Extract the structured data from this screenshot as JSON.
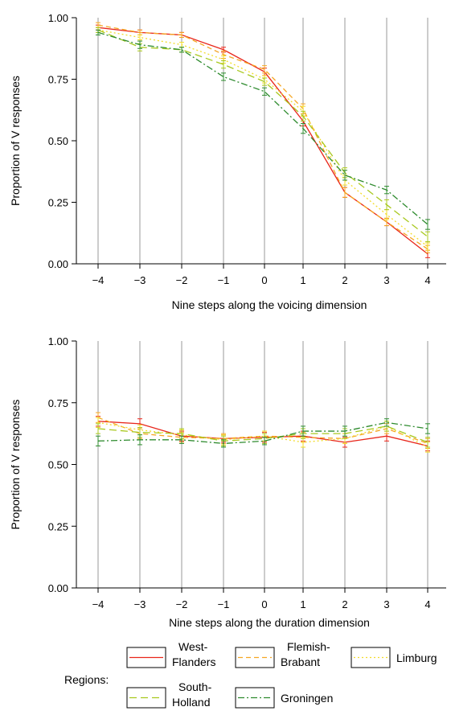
{
  "chart_data": [
    {
      "type": "line",
      "xlabel": "Nine steps along the voicing dimension",
      "ylabel": "Proportion of V responses",
      "x": [
        "−4",
        "−3",
        "−2",
        "−1",
        "0",
        "1",
        "2",
        "3",
        "4"
      ],
      "ylim": [
        0,
        1
      ],
      "yticks": [
        "0.00",
        "0.25",
        "0.50",
        "0.75",
        "1.00"
      ],
      "grid": "vertical",
      "series": [
        {
          "name": "West-Flanders",
          "color": "#e8261b",
          "dash": "solid",
          "values": [
            0.96,
            0.94,
            0.93,
            0.87,
            0.78,
            0.58,
            0.29,
            0.17,
            0.04
          ],
          "error": [
            0.01,
            0.01,
            0.01,
            0.01,
            0.015,
            0.02,
            0.02,
            0.015,
            0.015
          ]
        },
        {
          "name": "Flemish-Brabant",
          "color": "#f5a623",
          "dash": "dash",
          "values": [
            0.97,
            0.94,
            0.93,
            0.85,
            0.79,
            0.63,
            0.29,
            0.17,
            0.06
          ],
          "error": [
            0.01,
            0.01,
            0.01,
            0.015,
            0.015,
            0.02,
            0.02,
            0.015,
            0.015
          ]
        },
        {
          "name": "Limburg",
          "color": "#f2dc2a",
          "dash": "dot",
          "values": [
            0.95,
            0.92,
            0.89,
            0.83,
            0.75,
            0.62,
            0.34,
            0.2,
            0.07
          ],
          "error": [
            0.01,
            0.01,
            0.01,
            0.015,
            0.015,
            0.02,
            0.02,
            0.02,
            0.015
          ]
        },
        {
          "name": "South-Holland",
          "color": "#a8c81e",
          "dash": "longdash",
          "values": [
            0.95,
            0.88,
            0.87,
            0.81,
            0.74,
            0.6,
            0.37,
            0.24,
            0.11
          ],
          "error": [
            0.01,
            0.015,
            0.01,
            0.015,
            0.015,
            0.02,
            0.02,
            0.02,
            0.02
          ]
        },
        {
          "name": "Groningen",
          "color": "#2e8b2e",
          "dash": "dashdot",
          "values": [
            0.94,
            0.89,
            0.87,
            0.76,
            0.7,
            0.55,
            0.36,
            0.3,
            0.16
          ],
          "error": [
            0.01,
            0.015,
            0.01,
            0.015,
            0.015,
            0.02,
            0.02,
            0.015,
            0.02
          ]
        }
      ]
    },
    {
      "type": "line",
      "xlabel": "Nine steps along the duration dimension",
      "ylabel": "Proportion of V responses",
      "x": [
        "−4",
        "−3",
        "−2",
        "−1",
        "0",
        "1",
        "2",
        "3",
        "4"
      ],
      "ylim": [
        0,
        1
      ],
      "yticks": [
        "0.00",
        "0.25",
        "0.50",
        "0.75",
        "1.00"
      ],
      "grid": "vertical",
      "series": [
        {
          "name": "West-Flanders",
          "color": "#e8261b",
          "dash": "solid",
          "values": [
            0.675,
            0.665,
            0.615,
            0.605,
            0.61,
            0.615,
            0.59,
            0.615,
            0.575
          ],
          "error": [
            0.02,
            0.02,
            0.02,
            0.015,
            0.02,
            0.02,
            0.02,
            0.02,
            0.02
          ]
        },
        {
          "name": "Flemish-Brabant",
          "color": "#f5a623",
          "dash": "dash",
          "values": [
            0.69,
            0.625,
            0.61,
            0.605,
            0.615,
            0.61,
            0.605,
            0.645,
            0.585
          ],
          "error": [
            0.02,
            0.02,
            0.02,
            0.02,
            0.02,
            0.02,
            0.02,
            0.02,
            0.02
          ]
        },
        {
          "name": "Limburg",
          "color": "#f2dc2a",
          "dash": "dot",
          "values": [
            0.67,
            0.64,
            0.62,
            0.6,
            0.615,
            0.59,
            0.605,
            0.655,
            0.57
          ],
          "error": [
            0.02,
            0.02,
            0.02,
            0.02,
            0.02,
            0.02,
            0.02,
            0.02,
            0.02
          ]
        },
        {
          "name": "South-Holland",
          "color": "#a8c81e",
          "dash": "longdash",
          "values": [
            0.645,
            0.63,
            0.625,
            0.595,
            0.605,
            0.625,
            0.625,
            0.655,
            0.59
          ],
          "error": [
            0.02,
            0.02,
            0.02,
            0.02,
            0.02,
            0.02,
            0.02,
            0.02,
            0.02
          ]
        },
        {
          "name": "Groningen",
          "color": "#2e8b2e",
          "dash": "dashdot",
          "values": [
            0.595,
            0.6,
            0.6,
            0.585,
            0.595,
            0.635,
            0.635,
            0.67,
            0.645
          ],
          "error": [
            0.02,
            0.02,
            0.015,
            0.015,
            0.015,
            0.02,
            0.02,
            0.015,
            0.02
          ]
        }
      ]
    }
  ],
  "legend": {
    "title": "Regions:",
    "entries": [
      {
        "label_lines": [
          "West-",
          "Flanders"
        ]
      },
      {
        "label_lines": [
          "Flemish-",
          "Brabant"
        ]
      },
      {
        "label_lines": [
          "Limburg"
        ]
      },
      {
        "label_lines": [
          "South-",
          "Holland"
        ]
      },
      {
        "label_lines": [
          "Groningen"
        ]
      }
    ]
  }
}
